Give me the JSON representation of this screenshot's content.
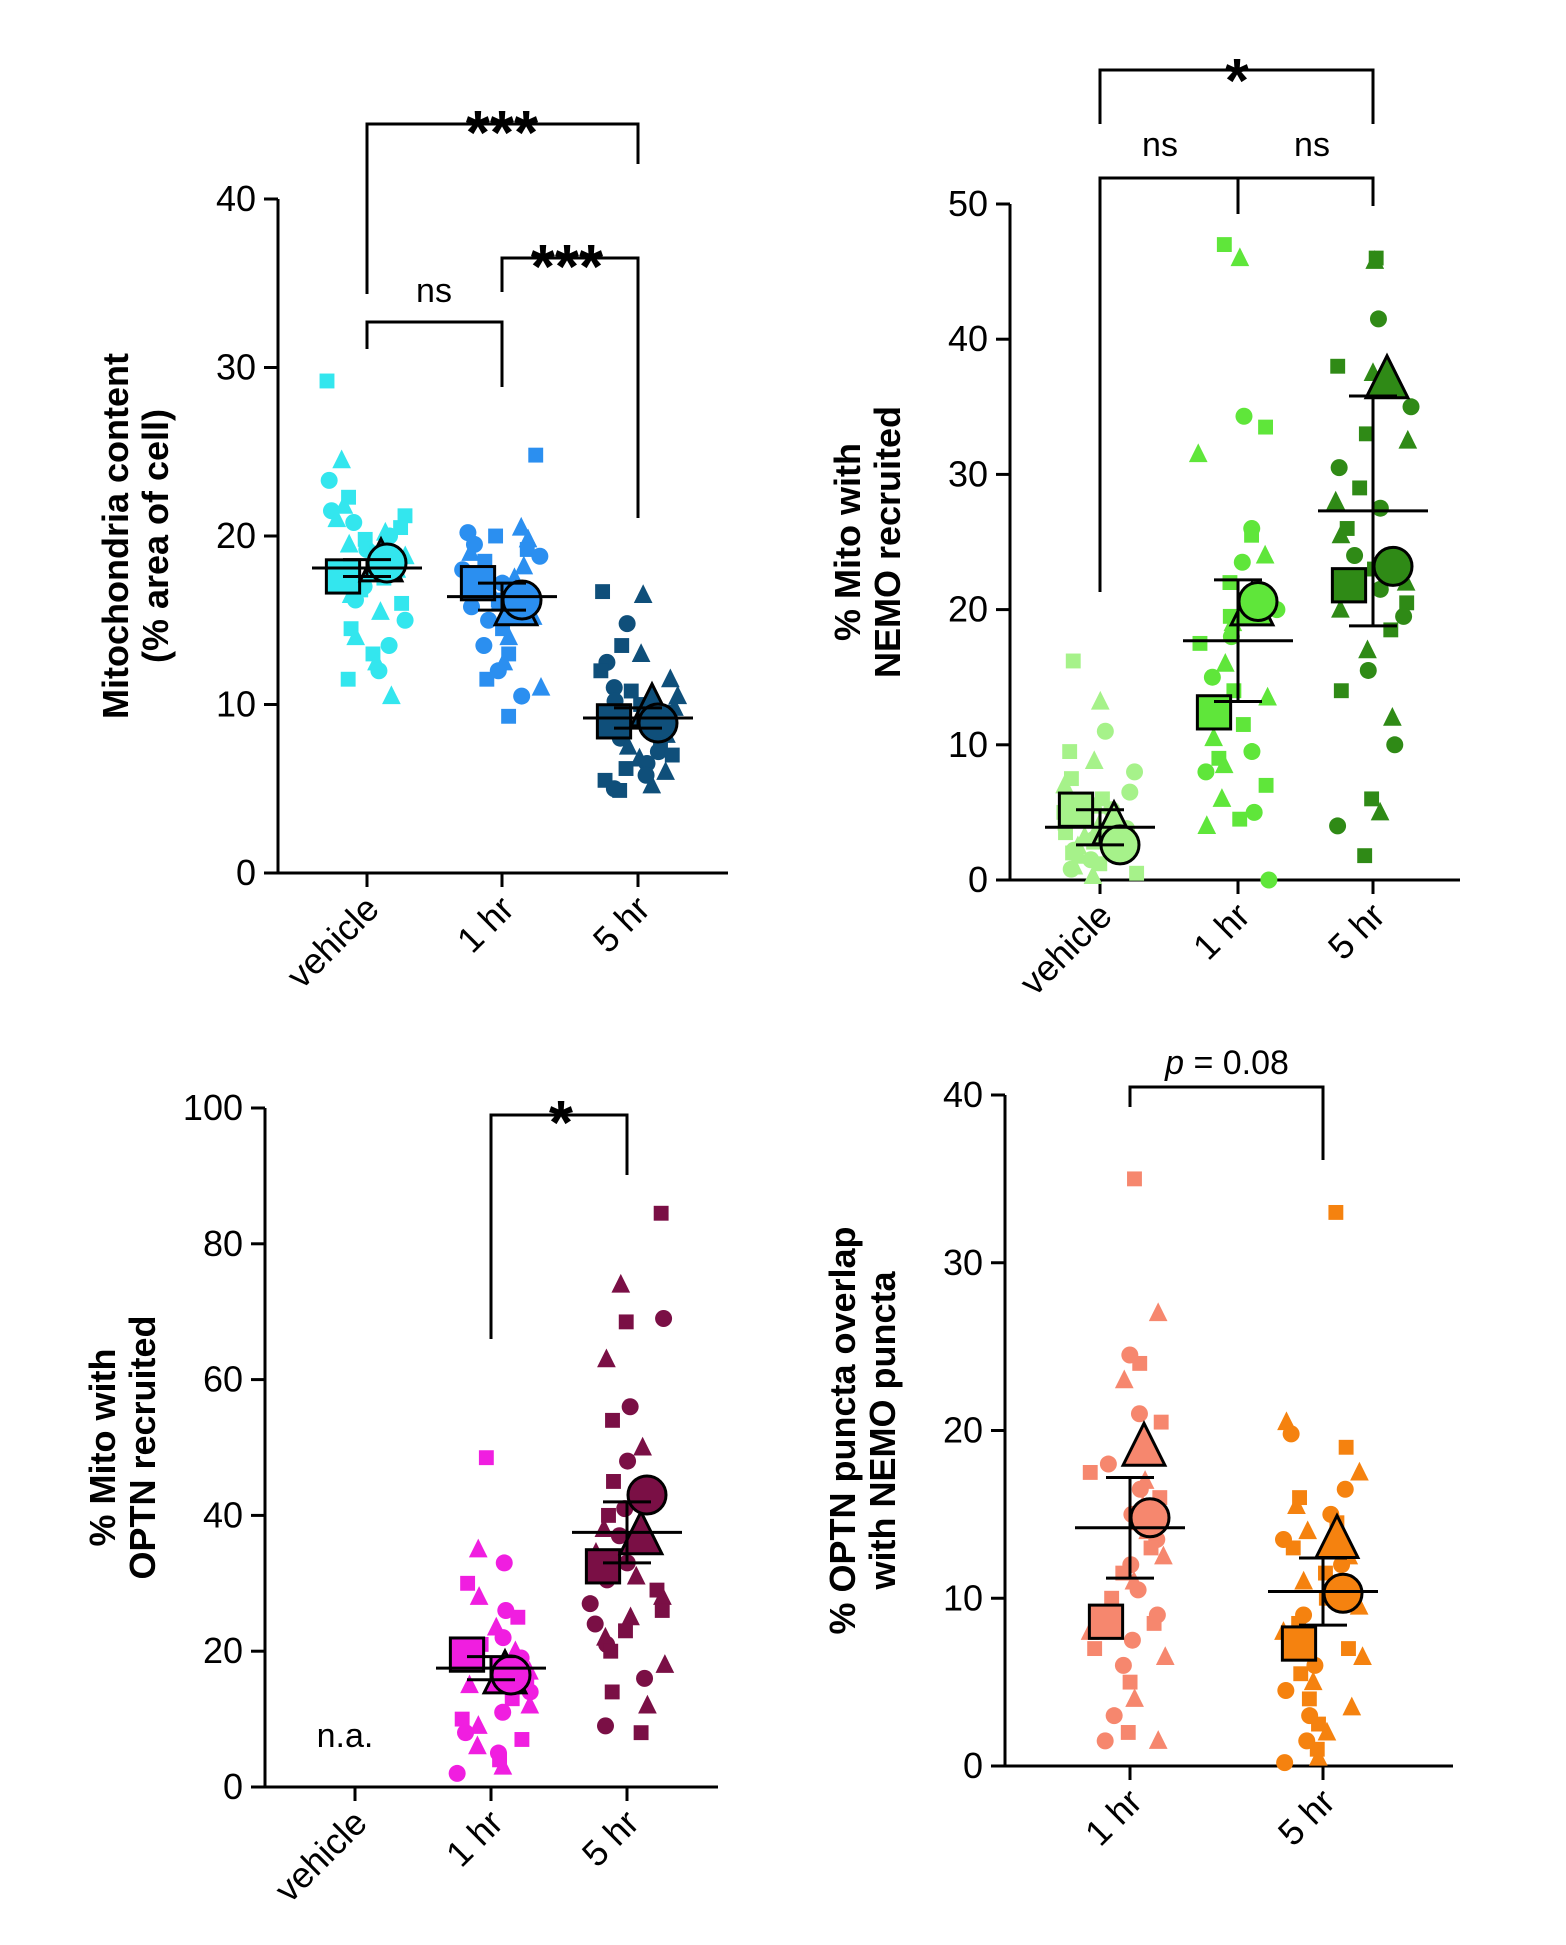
{
  "chart_data": [
    {
      "type": "scatter",
      "panel": "top-left",
      "ylabel": [
        "Mitochondria content",
        "(% area of cell)"
      ],
      "ylim": [
        0,
        40
      ],
      "yticks": [
        0,
        10,
        20,
        30,
        40
      ],
      "categories": [
        "vehicle",
        "1 hr",
        "5 hr"
      ],
      "colors": [
        "#33e6ee",
        "#2b8ff0",
        "#0f4f7a"
      ],
      "points": [
        [
          29.2,
          24.5,
          23.3,
          22.3,
          21.8,
          21.5,
          21.2,
          21.0,
          20.8,
          20.5,
          20.2,
          20.0,
          19.8,
          19.5,
          19.2,
          19.0,
          18.8,
          18.5,
          18.2,
          18.0,
          17.8,
          17.5,
          17.2,
          17.0,
          16.8,
          16.5,
          16.2,
          16.0,
          15.5,
          15.0,
          14.5,
          14.0,
          13.5,
          13.0,
          12.5,
          12.0,
          11.5,
          10.5
        ],
        [
          24.8,
          20.5,
          20.2,
          20.0,
          19.8,
          19.5,
          19.2,
          19.0,
          18.8,
          18.5,
          18.2,
          18.0,
          17.8,
          17.5,
          17.2,
          17.0,
          16.8,
          16.5,
          16.2,
          16.0,
          15.8,
          15.5,
          15.2,
          15.0,
          14.5,
          14.0,
          13.5,
          13.0,
          12.5,
          12.0,
          11.5,
          11.0,
          10.5,
          9.3
        ],
        [
          16.7,
          16.5,
          14.8,
          13.5,
          13.0,
          12.5,
          12.0,
          11.5,
          11.0,
          10.8,
          10.5,
          10.2,
          10.0,
          9.8,
          9.5,
          9.2,
          9.0,
          8.8,
          8.5,
          8.2,
          8.0,
          7.8,
          7.5,
          7.2,
          7.0,
          6.8,
          6.5,
          6.2,
          6.0,
          5.8,
          5.5,
          5.2,
          5.0,
          4.9
        ]
      ],
      "replicate_means": [
        {
          "square": 17.6,
          "triangle": 18.4,
          "circle": 18.4
        },
        {
          "square": 17.2,
          "triangle": 15.8,
          "circle": 16.2
        },
        {
          "square": 9.0,
          "triangle": 9.8,
          "circle": 8.9
        }
      ],
      "mean": [
        18.1,
        16.4,
        9.2
      ],
      "sd": [
        0.5,
        0.8,
        0.6
      ],
      "comparisons": [
        {
          "from": "vehicle",
          "to": "1 hr",
          "label": "ns"
        },
        {
          "from": "1 hr",
          "to": "5 hr",
          "label": "***"
        },
        {
          "from": "vehicle",
          "to": "5 hr",
          "label": "***"
        }
      ]
    },
    {
      "type": "scatter",
      "panel": "top-right",
      "ylabel": [
        "% Mito with",
        "NEMO recruited"
      ],
      "ylim": [
        0,
        50
      ],
      "yticks": [
        0,
        10,
        20,
        30,
        40,
        50
      ],
      "categories": [
        "vehicle",
        "1 hr",
        "5 hr"
      ],
      "colors": [
        "#a6f28a",
        "#5fe63a",
        "#2f8a16"
      ],
      "points": [
        [
          16.2,
          13.2,
          11.0,
          9.5,
          8.8,
          8.0,
          7.5,
          7.0,
          6.5,
          6.0,
          5.5,
          5.2,
          5.0,
          4.8,
          4.5,
          4.2,
          4.0,
          3.8,
          3.5,
          3.2,
          3.0,
          2.8,
          2.5,
          2.2,
          2.0,
          1.8,
          1.5,
          1.2,
          1.0,
          0.8,
          0.5,
          0.3
        ],
        [
          47.0,
          46.0,
          34.3,
          33.5,
          31.5,
          26.0,
          25.5,
          24.0,
          23.5,
          22.0,
          21.0,
          20.0,
          19.5,
          19.0,
          18.0,
          17.5,
          16.0,
          15.0,
          14.0,
          13.5,
          12.5,
          11.5,
          10.5,
          9.5,
          9.0,
          8.5,
          8.0,
          7.0,
          6.0,
          5.0,
          4.5,
          4.0,
          0.0
        ],
        [
          46.0,
          45.8,
          41.5,
          38.0,
          37.5,
          35.0,
          33.0,
          32.5,
          30.5,
          29.0,
          28.0,
          27.5,
          26.0,
          25.5,
          24.0,
          23.0,
          22.0,
          21.5,
          20.5,
          20.0,
          19.5,
          18.5,
          17.0,
          15.5,
          14.0,
          12.0,
          10.0,
          6.0,
          5.0,
          4.0,
          1.8
        ]
      ],
      "replicate_means": [
        {
          "square": 5.2,
          "triangle": 4.0,
          "circle": 2.6
        },
        {
          "square": 12.4,
          "triangle": 20.2,
          "circle": 20.6
        },
        {
          "square": 21.8,
          "triangle": 37.0,
          "circle": 23.2
        }
      ],
      "mean": [
        3.9,
        17.7,
        27.3
      ],
      "sd": [
        1.3,
        4.5,
        8.5
      ],
      "comparisons": [
        {
          "from": "vehicle",
          "to": "1 hr",
          "label": "ns"
        },
        {
          "from": "1 hr",
          "to": "5 hr",
          "label": "ns"
        },
        {
          "from": "vehicle",
          "to": "5 hr",
          "label": "*"
        }
      ]
    },
    {
      "type": "scatter",
      "panel": "bottom-left",
      "ylabel": [
        "% Mito with",
        "OPTN recruited"
      ],
      "ylim": [
        0,
        100
      ],
      "yticks": [
        0,
        20,
        40,
        60,
        80,
        100
      ],
      "categories": [
        "vehicle",
        "1 hr",
        "5 hr"
      ],
      "colors": [
        "#000000",
        "#f01ee0",
        "#7a0f45"
      ],
      "na_label": "n.a.",
      "points": [
        [],
        [
          48.5,
          35.0,
          33.0,
          30.0,
          28.0,
          26.0,
          25.0,
          23.5,
          22.0,
          21.0,
          20.0,
          19.0,
          18.0,
          17.0,
          16.0,
          15.5,
          15.0,
          14.0,
          13.0,
          12.0,
          11.0,
          10.0,
          9.0,
          8.0,
          7.0,
          6.0,
          5.0,
          4.0,
          3.0,
          2.0
        ],
        [
          84.5,
          74.0,
          69.0,
          68.5,
          63.0,
          56.0,
          54.0,
          50.0,
          48.0,
          45.0,
          43.0,
          41.0,
          40.0,
          38.0,
          37.0,
          35.5,
          34.5,
          33.0,
          32.0,
          31.0,
          30.5,
          29.0,
          28.0,
          27.0,
          26.0,
          25.0,
          24.0,
          23.0,
          22.0,
          21.0,
          20.0,
          18.0,
          16.0,
          14.0,
          12.0,
          9.0,
          8.0
        ]
      ],
      "replicate_means": [
        null,
        {
          "square": 19.5,
          "triangle": 16.5,
          "circle": 16.5
        },
        {
          "square": 32.5,
          "triangle": 37.0,
          "circle": 43.0
        }
      ],
      "mean": [
        null,
        17.5,
        37.5
      ],
      "sd": [
        null,
        1.7,
        4.5
      ],
      "comparisons": [
        {
          "from": "1 hr",
          "to": "5 hr",
          "label": "*"
        }
      ]
    },
    {
      "type": "scatter",
      "panel": "bottom-right",
      "ylabel": [
        "% OPTN puncta overlap",
        "with NEMO puncta"
      ],
      "ylim": [
        0,
        40
      ],
      "yticks": [
        0,
        10,
        20,
        30,
        40
      ],
      "categories": [
        "1 hr",
        "5 hr"
      ],
      "colors": [
        "#f6876e",
        "#f5820f"
      ],
      "points": [
        [
          35.0,
          27.0,
          24.5,
          24.0,
          23.0,
          21.0,
          20.5,
          19.5,
          18.0,
          17.5,
          17.0,
          16.5,
          16.0,
          15.5,
          15.0,
          14.5,
          14.0,
          13.5,
          13.0,
          12.5,
          12.0,
          11.5,
          11.0,
          10.5,
          10.0,
          9.5,
          9.0,
          8.5,
          8.0,
          7.5,
          7.0,
          6.5,
          6.0,
          5.0,
          4.0,
          3.0,
          2.0,
          1.5,
          1.5
        ],
        [
          33.0,
          20.5,
          19.8,
          19.0,
          17.5,
          16.5,
          16.0,
          15.5,
          15.0,
          14.5,
          14.0,
          13.5,
          13.0,
          12.5,
          12.0,
          11.5,
          11.0,
          10.5,
          10.0,
          9.5,
          9.0,
          8.5,
          8.0,
          7.5,
          7.0,
          6.5,
          6.0,
          5.5,
          5.0,
          4.5,
          4.0,
          3.5,
          3.0,
          2.5,
          2.0,
          1.5,
          1.0,
          0.5,
          0.2
        ]
      ],
      "replicate_means": [
        {
          "square": 8.6,
          "triangle": 19.0,
          "circle": 14.8
        },
        {
          "square": 7.3,
          "triangle": 13.5,
          "circle": 10.3
        }
      ],
      "mean": [
        14.2,
        10.4
      ],
      "sd": [
        3.0,
        2.0
      ],
      "comparisons": [
        {
          "from": "1 hr",
          "to": "5 hr",
          "label": "p = 0.08"
        }
      ]
    }
  ]
}
